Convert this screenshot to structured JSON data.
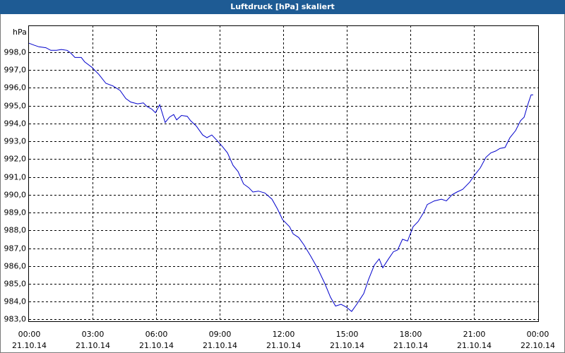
{
  "chart_data": {
    "type": "line",
    "title": "Luftdruck [hPa] skaliert",
    "y_label": "hPa",
    "xlim": [
      0,
      24
    ],
    "xticks": [
      {
        "value": 0,
        "label": "00:00"
      },
      {
        "value": 3,
        "label": "03:00"
      },
      {
        "value": 6,
        "label": "06:00"
      },
      {
        "value": 9,
        "label": "09:00"
      },
      {
        "value": 12,
        "label": "12:00"
      },
      {
        "value": 15,
        "label": "15:00"
      },
      {
        "value": 18,
        "label": "18:00"
      },
      {
        "value": 21,
        "label": "21:00"
      },
      {
        "value": 24,
        "label": "00:00"
      }
    ],
    "xtick_dates": [
      "21.10.14",
      "21.10.14",
      "21.10.14",
      "21.10.14",
      "21.10.14",
      "21.10.14",
      "21.10.14",
      "21.10.14",
      "22.10.14"
    ],
    "ylim": [
      982.9,
      999.5
    ],
    "yticks": [
      {
        "value": 983,
        "label": "983,0"
      },
      {
        "value": 984,
        "label": "984,0"
      },
      {
        "value": 985,
        "label": "985,0"
      },
      {
        "value": 986,
        "label": "986,0"
      },
      {
        "value": 987,
        "label": "987,0"
      },
      {
        "value": 988,
        "label": "988,0"
      },
      {
        "value": 989,
        "label": "989,0"
      },
      {
        "value": 990,
        "label": "990,0"
      },
      {
        "value": 991,
        "label": "991,0"
      },
      {
        "value": 992,
        "label": "992,0"
      },
      {
        "value": 993,
        "label": "993,0"
      },
      {
        "value": 994,
        "label": "994,0"
      },
      {
        "value": 995,
        "label": "995,0"
      },
      {
        "value": 996,
        "label": "996,0"
      },
      {
        "value": 997,
        "label": "997,0"
      },
      {
        "value": 998,
        "label": "998,0"
      }
    ],
    "grid": true,
    "series": [
      {
        "color": "#0000cc",
        "x": [
          0,
          0.23,
          0.47,
          0.8,
          1.03,
          1.3,
          1.53,
          1.8,
          1.97,
          2.17,
          2.47,
          2.63,
          2.97,
          3.3,
          3.63,
          3.97,
          4.3,
          4.57,
          4.8,
          5.13,
          5.4,
          5.57,
          5.8,
          5.97,
          6.17,
          6.43,
          6.63,
          6.83,
          6.97,
          7.2,
          7.47,
          7.63,
          7.9,
          8.2,
          8.4,
          8.63,
          8.87,
          9.13,
          9.37,
          9.63,
          9.87,
          10.13,
          10.37,
          10.57,
          10.83,
          11.13,
          11.47,
          11.73,
          11.97,
          12.3,
          12.47,
          12.73,
          12.97,
          13.3,
          13.63,
          13.97,
          14.23,
          14.47,
          14.73,
          14.97,
          15.23,
          15.47,
          15.8,
          16.03,
          16.3,
          16.53,
          16.7,
          16.97,
          17.2,
          17.4,
          17.63,
          17.87,
          18.13,
          18.37,
          18.63,
          18.8,
          19.13,
          19.47,
          19.7,
          19.97,
          20.2,
          20.47,
          20.8,
          21.03,
          21.3,
          21.57,
          21.8,
          22.03,
          22.23,
          22.47,
          22.7,
          22.97,
          23.2,
          23.37,
          23.57,
          23.7,
          23.8
        ],
        "values": [
          998.5,
          998.4,
          998.3,
          998.25,
          998.1,
          998.1,
          998.15,
          998.1,
          997.95,
          997.7,
          997.7,
          997.45,
          997.15,
          996.75,
          996.25,
          996.1,
          995.85,
          995.4,
          995.2,
          995.1,
          995.15,
          994.95,
          994.8,
          994.6,
          995.05,
          994.05,
          994.35,
          994.5,
          994.2,
          994.45,
          994.4,
          994.15,
          993.85,
          993.35,
          993.2,
          993.35,
          993.05,
          992.7,
          992.35,
          991.65,
          991.3,
          990.6,
          990.4,
          990.15,
          990.2,
          990.1,
          989.75,
          989.2,
          988.6,
          988.2,
          987.8,
          987.6,
          987.2,
          986.55,
          985.85,
          985.0,
          984.25,
          983.75,
          983.85,
          983.7,
          983.45,
          983.85,
          984.45,
          985.25,
          986.05,
          986.4,
          985.9,
          986.4,
          986.8,
          986.9,
          987.5,
          987.4,
          988.2,
          988.5,
          989.0,
          989.45,
          989.65,
          989.75,
          989.65,
          990.0,
          990.15,
          990.3,
          990.7,
          991.1,
          991.5,
          992.1,
          992.35,
          992.45,
          992.6,
          992.65,
          993.2,
          993.6,
          994.15,
          994.35,
          995.15,
          995.6,
          995.6
        ]
      }
    ]
  }
}
